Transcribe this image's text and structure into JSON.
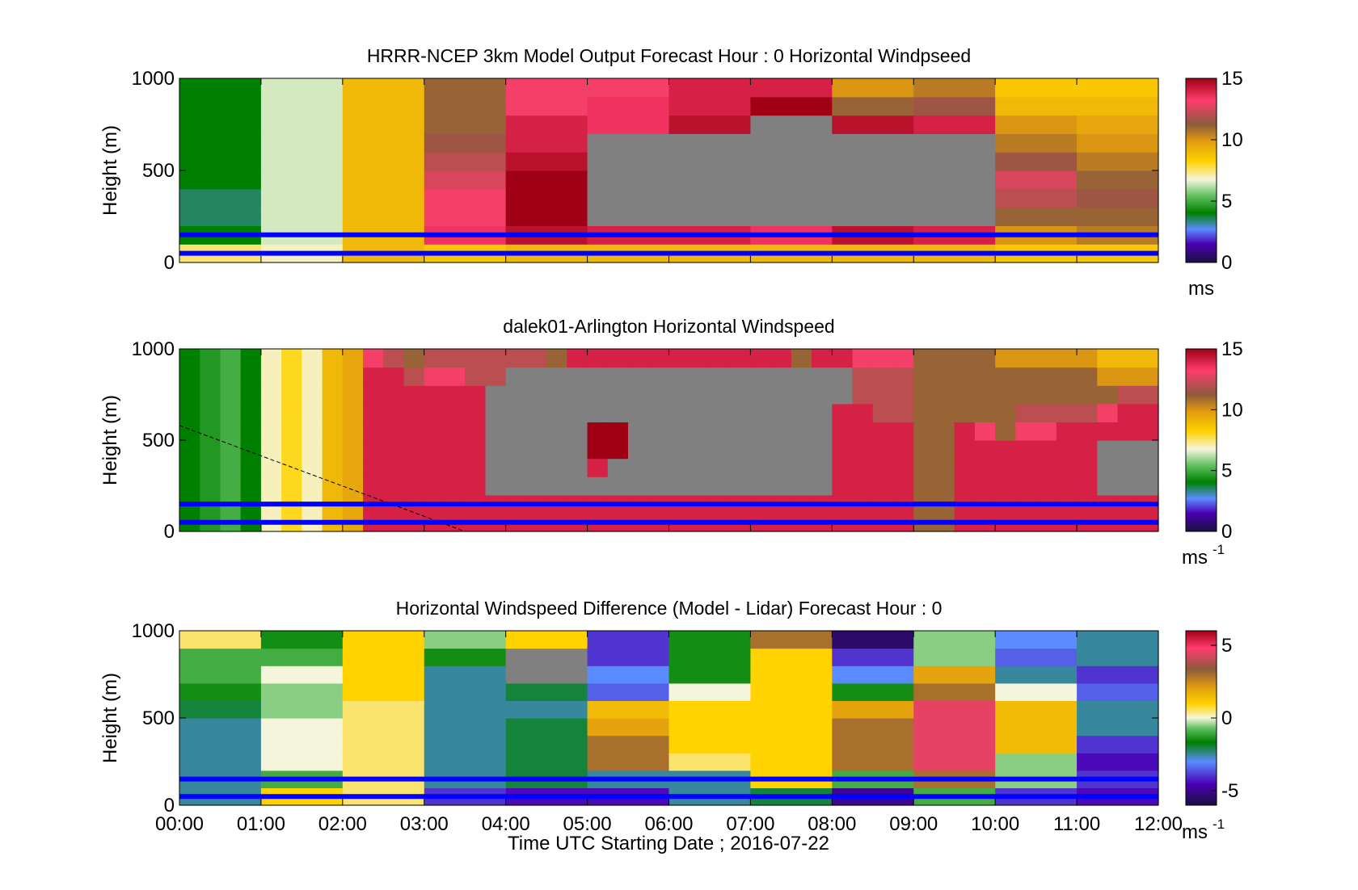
{
  "figure": {
    "xlabel": "Time UTC  Starting Date ; 2016-07-22",
    "x_tick_labels": [
      "00:00",
      "01:00",
      "02:00",
      "03:00",
      "04:00",
      "05:00",
      "06:00",
      "07:00",
      "08:00",
      "09:00",
      "10:00",
      "11:00",
      "12:00"
    ]
  },
  "chart_data": [
    {
      "type": "heatmap",
      "title": "HRRR-NCEP 3km Model Output   Forecast Hour : 0 Horizontal Windpseed",
      "ylabel": "Height (m)",
      "ylim": [
        0,
        1000
      ],
      "y_ticks": [
        0,
        500,
        1000
      ],
      "y_tick_labels": [
        "0",
        "500",
        "1000"
      ],
      "xlim_hours": [
        0,
        12
      ],
      "colorbar": {
        "range": [
          0,
          15
        ],
        "ticks": [
          0,
          5,
          10,
          15
        ],
        "tick_labels": [
          "0",
          "5",
          "10",
          "15"
        ],
        "unit": "ms"
      },
      "hline_heights_m": [
        150,
        50
      ],
      "hline_color": "#0000ff",
      "hours": [
        0,
        1,
        2,
        3,
        4,
        5,
        6,
        7,
        8,
        9,
        10,
        11
      ],
      "height_bins_m": [
        0,
        100,
        200,
        300,
        400,
        500,
        600,
        700,
        800,
        900,
        1000
      ],
      "values": [
        [
          7.5,
          4.0,
          3.5,
          3.5,
          4.0,
          4.0,
          4.0,
          4.0,
          4.0,
          4.0
        ],
        [
          7.0,
          6.5,
          6.5,
          6.5,
          6.5,
          6.5,
          6.5,
          6.5,
          6.5,
          6.5
        ],
        [
          9.0,
          9.0,
          9.0,
          9.0,
          9.0,
          9.0,
          9.0,
          9.0,
          9.0,
          9.0
        ],
        [
          8.5,
          13.5,
          13.0,
          13.0,
          12.5,
          12.0,
          11.5,
          11.0,
          11.0,
          11.0
        ],
        [
          9.0,
          14.5,
          15.0,
          15.0,
          15.0,
          14.5,
          14.0,
          14.0,
          13.0,
          13.0
        ],
        [
          9.0,
          14.0,
          null,
          null,
          null,
          null,
          null,
          13.5,
          13.5,
          13.0
        ],
        [
          9.0,
          14.0,
          null,
          null,
          null,
          null,
          null,
          14.5,
          14.0,
          14.0
        ],
        [
          9.0,
          13.5,
          null,
          null,
          null,
          null,
          null,
          null,
          15.0,
          14.0
        ],
        [
          9.0,
          14.5,
          null,
          null,
          null,
          null,
          null,
          14.5,
          11.0,
          10.0
        ],
        [
          9.0,
          14.0,
          null,
          null,
          null,
          null,
          null,
          14.0,
          11.5,
          10.5
        ],
        [
          8.5,
          10.0,
          11.0,
          12.0,
          12.5,
          11.5,
          10.5,
          10.0,
          9.0,
          8.5
        ],
        [
          8.5,
          10.5,
          11.0,
          11.5,
          11.0,
          10.5,
          10.0,
          9.5,
          9.0,
          8.5
        ]
      ]
    },
    {
      "type": "heatmap",
      "title": "dalek01-Arlington  Horizontal Windspeed",
      "ylabel": "Height (m)",
      "ylim": [
        0,
        1000
      ],
      "y_ticks": [
        0,
        500,
        1000
      ],
      "y_tick_labels": [
        "0",
        "500",
        "1000"
      ],
      "xlim_hours": [
        0,
        12
      ],
      "colorbar": {
        "range": [
          0,
          15
        ],
        "ticks": [
          0,
          5,
          10,
          15
        ],
        "tick_labels": [
          "0",
          "5",
          "10",
          "15"
        ],
        "unit": "ms",
        "unit_superscript": "-1"
      },
      "hline_heights_m": [
        150,
        50
      ],
      "hline_color": "#0000ff",
      "dashed_line": {
        "from": [
          0.0,
          580
        ],
        "to": [
          3.5,
          0
        ]
      },
      "column_step_hours": 0.25,
      "height_bins_m": [
        0,
        100,
        200,
        300,
        400,
        500,
        600,
        700,
        800,
        900,
        1000
      ],
      "values": [
        [
          4,
          4,
          4,
          4,
          4,
          4,
          4,
          4,
          4,
          4
        ],
        [
          4.5,
          4.5,
          4.5,
          4.5,
          4.5,
          4.5,
          4.5,
          4.5,
          4.5,
          4.5
        ],
        [
          5,
          5,
          5,
          5,
          5,
          5,
          5,
          5,
          5,
          5
        ],
        [
          4,
          4,
          4,
          4,
          4,
          4,
          4,
          4,
          4,
          4
        ],
        [
          7,
          7,
          7,
          7,
          7,
          7,
          7,
          7,
          7,
          7
        ],
        [
          8,
          8,
          8,
          8,
          8,
          8,
          8,
          8,
          8,
          8
        ],
        [
          7,
          7,
          7,
          7,
          7,
          7,
          7,
          7,
          7,
          7
        ],
        [
          9,
          9,
          9,
          9,
          9,
          9,
          9,
          9,
          9,
          9
        ],
        [
          9.5,
          9.5,
          9.5,
          9.5,
          9.5,
          9.5,
          9.5,
          9.5,
          9.5,
          9.5
        ],
        [
          14,
          14,
          14,
          14,
          14,
          14,
          14,
          14,
          14,
          13
        ],
        [
          14,
          14,
          14,
          14,
          14,
          14,
          14,
          14,
          14,
          12
        ],
        [
          14,
          14,
          14,
          14,
          14,
          14,
          14,
          14,
          12,
          11
        ],
        [
          14,
          14,
          14,
          14,
          14,
          14,
          14,
          14,
          13,
          12
        ],
        [
          14,
          14,
          14,
          14,
          14,
          14,
          14,
          14,
          13,
          12
        ],
        [
          14,
          14,
          14,
          14,
          14,
          14,
          14,
          14,
          12,
          12
        ],
        [
          14,
          14,
          null,
          null,
          null,
          null,
          null,
          null,
          12,
          12
        ],
        [
          14,
          14,
          null,
          null,
          null,
          null,
          null,
          null,
          null,
          12
        ],
        [
          14,
          14,
          null,
          null,
          null,
          null,
          null,
          null,
          null,
          12
        ],
        [
          14,
          14,
          null,
          null,
          null,
          null,
          null,
          null,
          null,
          11
        ],
        [
          14,
          14,
          null,
          null,
          null,
          null,
          null,
          null,
          null,
          14
        ],
        [
          14,
          14,
          null,
          14,
          15,
          15,
          null,
          null,
          null,
          14
        ],
        [
          14,
          14,
          null,
          null,
          15,
          15,
          null,
          null,
          null,
          14
        ],
        [
          14,
          14,
          null,
          null,
          null,
          null,
          null,
          null,
          null,
          14
        ],
        [
          14,
          14,
          null,
          null,
          null,
          null,
          null,
          null,
          null,
          14
        ],
        [
          14,
          14,
          null,
          null,
          null,
          null,
          null,
          null,
          null,
          14
        ],
        [
          14,
          14,
          null,
          null,
          null,
          null,
          null,
          null,
          null,
          14
        ],
        [
          14,
          14,
          null,
          null,
          null,
          null,
          null,
          null,
          null,
          14
        ],
        [
          14,
          14,
          null,
          null,
          null,
          null,
          null,
          null,
          null,
          14
        ],
        [
          14,
          14,
          null,
          null,
          null,
          null,
          null,
          null,
          null,
          14
        ],
        [
          14,
          14,
          null,
          null,
          null,
          null,
          null,
          null,
          null,
          14
        ],
        [
          14,
          14,
          null,
          null,
          null,
          null,
          null,
          null,
          null,
          11
        ],
        [
          14,
          14,
          null,
          null,
          null,
          null,
          null,
          null,
          null,
          14
        ],
        [
          14,
          14,
          14,
          14,
          14,
          14,
          14,
          null,
          null,
          14
        ],
        [
          14,
          14,
          14,
          14,
          14,
          14,
          14,
          12,
          12,
          13
        ],
        [
          14,
          14,
          14,
          14,
          14,
          14,
          12,
          12,
          12,
          13
        ],
        [
          14,
          14,
          14,
          14,
          14,
          14,
          12,
          12,
          12,
          13
        ],
        [
          11,
          11,
          11,
          11,
          11,
          11,
          11,
          11,
          11,
          11
        ],
        [
          11,
          11,
          11,
          11,
          11,
          11,
          11,
          11,
          11,
          11
        ],
        [
          14,
          14,
          14,
          14,
          14,
          14,
          11,
          11,
          11,
          11
        ],
        [
          14,
          14,
          14,
          14,
          14,
          13,
          11,
          11,
          11,
          11
        ],
        [
          14,
          14,
          14,
          14,
          14,
          11,
          11,
          11,
          11,
          10
        ],
        [
          14,
          14,
          14,
          14,
          14,
          13,
          12,
          11,
          11,
          10
        ],
        [
          14,
          14,
          14,
          14,
          14,
          13,
          12,
          11,
          11,
          10
        ],
        [
          14,
          14,
          14,
          14,
          14,
          14,
          12,
          11,
          11,
          10
        ],
        [
          14,
          14,
          14,
          14,
          14,
          14,
          12,
          11,
          11,
          10
        ],
        [
          14,
          14,
          null,
          null,
          null,
          14,
          13,
          11,
          10,
          9
        ],
        [
          14,
          14,
          null,
          null,
          null,
          14,
          14,
          12,
          10,
          9
        ],
        [
          14,
          14,
          null,
          null,
          null,
          14,
          14,
          12,
          10,
          9
        ]
      ]
    },
    {
      "type": "heatmap",
      "title": "Horizontal Windspeed Difference (Model - Lidar) Forecast Hour : 0",
      "xlabel": "Time UTC  Starting Date ; 2016-07-22",
      "ylabel": "Height (m)",
      "ylim": [
        0,
        1000
      ],
      "y_ticks": [
        0,
        500,
        1000
      ],
      "y_tick_labels": [
        "0",
        "500",
        "1000"
      ],
      "xlim_hours": [
        0,
        12
      ],
      "colorbar": {
        "range": [
          -6,
          6
        ],
        "ticks": [
          -5,
          0,
          5
        ],
        "tick_labels": [
          "-5",
          "0",
          "5"
        ],
        "unit": "ms",
        "unit_superscript": "-1"
      },
      "hline_heights_m": [
        150,
        50
      ],
      "hline_color": "#0000ff",
      "hours": [
        0,
        1,
        2,
        3,
        4,
        5,
        6,
        7,
        8,
        9,
        10,
        11
      ],
      "height_bins_m": [
        0,
        100,
        200,
        300,
        400,
        500,
        600,
        700,
        800,
        900,
        1000
      ],
      "values": [
        [
          -2.5,
          -2.5,
          -2.5,
          -2.5,
          -2.5,
          -2.0,
          -1.5,
          -1.0,
          -1.0,
          0.5
        ],
        [
          1.0,
          -1.0,
          0,
          0,
          0,
          -0.5,
          -0.5,
          0,
          -1.0,
          -1.5
        ],
        [
          0.5,
          0.5,
          0.5,
          0.5,
          0.5,
          0.5,
          1.0,
          1.0,
          1.0,
          1.0
        ],
        [
          -4.0,
          -2.5,
          -2.5,
          -2.5,
          -2.5,
          -2.5,
          -2.5,
          -2.5,
          -1.5,
          -0.5
        ],
        [
          -4.5,
          -2.0,
          -2.0,
          -2.0,
          -2.0,
          -2.5,
          -2.0,
          null,
          null,
          1.0
        ],
        [
          -4.5,
          -2.5,
          3.0,
          3.0,
          2.0,
          1.5,
          -3.5,
          -3.0,
          -4.0,
          -4.0
        ],
        [
          -2.5,
          -2.5,
          0.5,
          1.0,
          1.0,
          1.0,
          0,
          -1.5,
          -1.5,
          -1.5
        ],
        [
          -2.0,
          1.0,
          1.0,
          1.0,
          1.0,
          1.0,
          1.0,
          1.0,
          1.0,
          3.0
        ],
        [
          -5.0,
          -1.0,
          3.0,
          3.0,
          3.0,
          2.0,
          -1.5,
          -3.0,
          -4.0,
          -5.5
        ],
        [
          -1.0,
          3.0,
          4.5,
          4.5,
          4.5,
          4.5,
          3.0,
          2.0,
          -0.5,
          -0.5
        ],
        [
          -4.0,
          -0.5,
          -0.5,
          1.5,
          1.5,
          1.5,
          0,
          -2.5,
          -3.5,
          -3.0
        ],
        [
          -4.5,
          -4.0,
          -4.5,
          -4.0,
          -2.5,
          -2.5,
          -3.5,
          -4.0,
          -2.5,
          -2.5
        ]
      ]
    }
  ]
}
